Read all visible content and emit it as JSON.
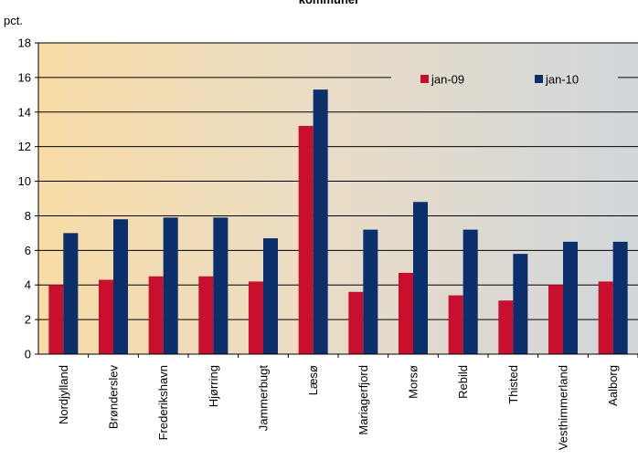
{
  "chart_data": {
    "type": "bar",
    "title": "kommuner",
    "ylabel": "pct.",
    "xlabel": "",
    "ylim": [
      0,
      18
    ],
    "yticks": [
      0,
      2,
      4,
      6,
      8,
      10,
      12,
      14,
      16,
      18
    ],
    "grid": true,
    "legend_position": "top-right",
    "categories": [
      "Nordjylland",
      "Brønderslev",
      "Frederikshavn",
      "Hjørring",
      "Jammerbugt",
      "Læsø",
      "Mariagerfjord",
      "Morsø",
      "Rebild",
      "Thisted",
      "Vesthimmerland",
      "Aalborg"
    ],
    "series": [
      {
        "name": "jan-09",
        "color": "#c8102e",
        "values": [
          4.0,
          4.3,
          4.5,
          4.5,
          4.2,
          13.2,
          3.6,
          4.7,
          3.4,
          3.1,
          4.0,
          4.2
        ]
      },
      {
        "name": "jan-10",
        "color": "#0a2f6b",
        "values": [
          7.0,
          7.8,
          7.9,
          7.9,
          6.7,
          15.3,
          7.2,
          8.8,
          7.2,
          5.8,
          6.5,
          6.5
        ]
      }
    ]
  }
}
